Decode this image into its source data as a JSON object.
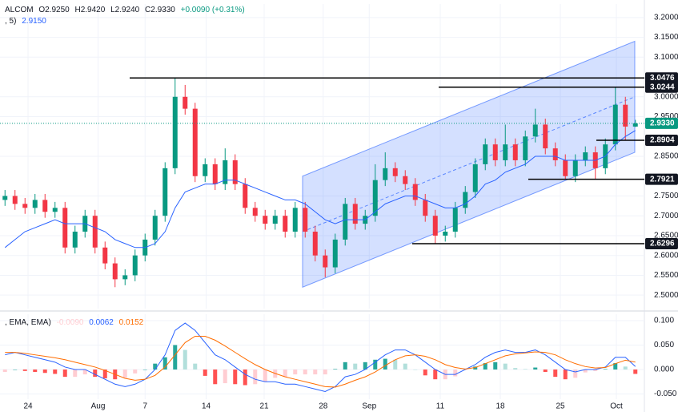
{
  "chart_data": [
    {
      "type": "candlestick",
      "symbol": "ALCOM",
      "ohlc_labels": [
        "O2.9250",
        "H2.9420",
        "L2.9240",
        "C2.9330"
      ],
      "change": "+0.0090 (+0.31%)",
      "ema_label": ", 5)",
      "ema_value": "2.9150",
      "up_color": "#089981",
      "down_color": "#f23645",
      "open": [
        2.74,
        2.75,
        2.73,
        2.72,
        2.74,
        2.71,
        2.72,
        2.62,
        2.66,
        2.7,
        2.62,
        2.58,
        2.54,
        2.55,
        2.6,
        2.64,
        2.7,
        2.82,
        3.0,
        2.97,
        2.8,
        2.83,
        2.78,
        2.84,
        2.78,
        2.72,
        2.7,
        2.68,
        2.7,
        2.66,
        2.72,
        2.66,
        2.6,
        2.57,
        2.64,
        2.73,
        2.68,
        2.7,
        2.79,
        2.82,
        2.8,
        2.78,
        2.74,
        2.7,
        2.65,
        2.66,
        2.72,
        2.76,
        2.83,
        2.88,
        2.84,
        2.88,
        2.84,
        2.9,
        2.93,
        2.87,
        2.84,
        2.8,
        2.84,
        2.86,
        2.82,
        2.88,
        2.98,
        2.925
      ],
      "high": [
        2.765,
        2.765,
        2.745,
        2.755,
        2.755,
        2.735,
        2.735,
        2.675,
        2.715,
        2.715,
        2.635,
        2.595,
        2.565,
        2.615,
        2.655,
        2.715,
        2.835,
        3.0476,
        3.03,
        2.985,
        2.845,
        2.845,
        2.87,
        2.855,
        2.795,
        2.735,
        2.715,
        2.715,
        2.715,
        2.735,
        2.735,
        2.675,
        2.615,
        2.655,
        2.745,
        2.745,
        2.715,
        2.83,
        2.86,
        2.835,
        2.815,
        2.795,
        2.755,
        2.715,
        2.675,
        2.735,
        2.775,
        2.845,
        2.895,
        2.895,
        2.93,
        2.895,
        2.915,
        2.97,
        2.945,
        2.885,
        2.855,
        2.855,
        2.875,
        2.875,
        2.895,
        3.0244,
        3.0,
        2.942
      ],
      "low": [
        2.725,
        2.715,
        2.705,
        2.705,
        2.695,
        2.695,
        2.605,
        2.605,
        2.645,
        2.605,
        2.565,
        2.52,
        2.525,
        2.535,
        2.585,
        2.625,
        2.685,
        2.805,
        2.955,
        2.785,
        2.785,
        2.765,
        2.765,
        2.765,
        2.705,
        2.685,
        2.665,
        2.665,
        2.645,
        2.645,
        2.645,
        2.585,
        2.545,
        2.555,
        2.625,
        2.665,
        2.665,
        2.685,
        2.775,
        2.785,
        2.765,
        2.725,
        2.685,
        2.6296,
        2.635,
        2.645,
        2.705,
        2.745,
        2.815,
        2.825,
        2.825,
        2.825,
        2.825,
        2.885,
        2.855,
        2.825,
        2.7921,
        2.785,
        2.825,
        2.7921,
        2.805,
        2.865,
        2.8904,
        2.924
      ],
      "close": [
        2.75,
        2.73,
        2.72,
        2.74,
        2.71,
        2.72,
        2.62,
        2.66,
        2.7,
        2.62,
        2.58,
        2.54,
        2.55,
        2.6,
        2.64,
        2.7,
        2.82,
        3.0,
        2.97,
        2.8,
        2.83,
        2.78,
        2.84,
        2.78,
        2.72,
        2.7,
        2.68,
        2.7,
        2.66,
        2.72,
        2.66,
        2.6,
        2.57,
        2.64,
        2.73,
        2.68,
        2.7,
        2.79,
        2.82,
        2.8,
        2.78,
        2.74,
        2.7,
        2.65,
        2.66,
        2.72,
        2.76,
        2.83,
        2.88,
        2.84,
        2.88,
        2.84,
        2.9,
        2.93,
        2.87,
        2.84,
        2.8,
        2.84,
        2.86,
        2.82,
        2.88,
        2.98,
        2.925,
        2.933
      ],
      "ema": {
        "color": "#2962ff",
        "values": [
          2.62,
          2.64,
          2.66,
          2.67,
          2.68,
          2.69,
          2.68,
          2.68,
          2.68,
          2.67,
          2.66,
          2.64,
          2.63,
          2.62,
          2.62,
          2.63,
          2.66,
          2.72,
          2.76,
          2.77,
          2.78,
          2.78,
          2.79,
          2.79,
          2.78,
          2.77,
          2.76,
          2.75,
          2.74,
          2.74,
          2.73,
          2.71,
          2.69,
          2.68,
          2.69,
          2.69,
          2.69,
          2.71,
          2.73,
          2.74,
          2.75,
          2.75,
          2.74,
          2.73,
          2.72,
          2.72,
          2.73,
          2.75,
          2.78,
          2.79,
          2.81,
          2.82,
          2.83,
          2.85,
          2.85,
          2.85,
          2.84,
          2.84,
          2.84,
          2.84,
          2.85,
          2.88,
          2.9,
          2.915
        ]
      },
      "channel": {
        "color": "#2962ff",
        "x": [
          30.24,
          63.44
        ],
        "upper": [
          2.8,
          3.14
        ],
        "lower": [
          2.52,
          2.86
        ]
      },
      "levels": [
        {
          "value": 3.0476,
          "start": 12.96
        },
        {
          "value": 3.0244,
          "start": 43.84
        },
        {
          "value": 2.8904,
          "start": 59.6
        },
        {
          "value": 2.7921,
          "start": 52.8
        },
        {
          "value": 2.6296,
          "start": 41.2
        }
      ],
      "last_price": {
        "value": 2.933,
        "label": "2.9330"
      },
      "xlim": [
        0,
        64.4
      ],
      "ylim": [
        2.466,
        3.234
      ],
      "yticks": [
        {
          "value": 2.5,
          "label": "2.5000"
        },
        {
          "value": 2.55,
          "label": "2.5500"
        },
        {
          "value": 2.6,
          "label": "2.6000"
        },
        {
          "value": 2.65,
          "label": "2.6500"
        },
        {
          "value": 2.7,
          "label": "2.7000"
        },
        {
          "value": 2.75,
          "label": "2.7500"
        },
        {
          "value": 2.85,
          "label": "2.8500"
        },
        {
          "value": 2.95,
          "label": "2.9500"
        },
        {
          "value": 3.0,
          "label": "3.0000"
        },
        {
          "value": 3.1,
          "label": "3.1000"
        },
        {
          "value": 3.15,
          "label": "3.1500"
        },
        {
          "value": 3.2,
          "label": "3.2000"
        }
      ],
      "grid": true
    },
    {
      "type": "macd",
      "label": ", EMA, EMA)",
      "value_labels": [
        "-0.0090",
        "0.0062",
        "0.0152"
      ],
      "series": [
        {
          "color": "#2962ff",
          "values": [
            0.03,
            0.035,
            0.03,
            0.025,
            0.02,
            0.015,
            0.005,
            0.0,
            0.0,
            -0.01,
            -0.02,
            -0.03,
            -0.035,
            -0.03,
            -0.02,
            0.0,
            0.03,
            0.08,
            0.095,
            0.08,
            0.055,
            0.03,
            0.02,
            0.005,
            -0.01,
            -0.02,
            -0.025,
            -0.025,
            -0.03,
            -0.03,
            -0.035,
            -0.04,
            -0.045,
            -0.035,
            -0.015,
            -0.01,
            0.0,
            0.015,
            0.03,
            0.04,
            0.04,
            0.03,
            0.015,
            0.0,
            -0.01,
            -0.01,
            0.0,
            0.01,
            0.025,
            0.035,
            0.04,
            0.035,
            0.035,
            0.04,
            0.03,
            0.015,
            0.0,
            -0.005,
            0.0,
            0.0,
            0.005,
            0.025,
            0.025,
            0.0062
          ]
        },
        {
          "color": "#ff6d00",
          "values": [
            0.035,
            0.035,
            0.033,
            0.03,
            0.027,
            0.024,
            0.02,
            0.015,
            0.01,
            0.005,
            -0.002,
            -0.01,
            -0.018,
            -0.022,
            -0.02,
            -0.012,
            0.005,
            0.03,
            0.055,
            0.068,
            0.068,
            0.06,
            0.048,
            0.035,
            0.022,
            0.01,
            0.0,
            -0.008,
            -0.015,
            -0.02,
            -0.025,
            -0.03,
            -0.035,
            -0.036,
            -0.03,
            -0.022,
            -0.015,
            -0.005,
            0.008,
            0.02,
            0.028,
            0.03,
            0.027,
            0.02,
            0.01,
            0.004,
            0.001,
            0.004,
            0.012,
            0.02,
            0.028,
            0.032,
            0.034,
            0.036,
            0.035,
            0.03,
            0.02,
            0.012,
            0.006,
            0.003,
            0.004,
            0.012,
            0.019,
            0.0152
          ]
        }
      ],
      "histogram": {
        "colors": [
          "#26a69a",
          "#b2dfdb",
          "#ffcdd2",
          "#ff5252"
        ],
        "values": [
          -0.005,
          0,
          -0.003,
          -0.005,
          -0.007,
          -0.009,
          -0.015,
          -0.015,
          -0.01,
          -0.015,
          -0.018,
          -0.02,
          -0.017,
          -0.008,
          0,
          0.012,
          0.025,
          0.05,
          0.04,
          0.012,
          -0.013,
          -0.03,
          -0.028,
          -0.03,
          -0.032,
          -0.03,
          -0.025,
          -0.017,
          -0.015,
          -0.01,
          -0.01,
          -0.01,
          -0.01,
          0.001,
          0.015,
          0.012,
          0.015,
          0.02,
          0.022,
          0.02,
          0.012,
          0,
          -0.012,
          -0.02,
          -0.02,
          -0.014,
          -0.001,
          0.006,
          0.013,
          0.015,
          0.012,
          0.003,
          0.001,
          0.004,
          -0.005,
          -0.015,
          -0.02,
          -0.017,
          -0.006,
          -0.003,
          0.001,
          0.013,
          0.006,
          -0.009
        ]
      },
      "xlim": [
        0,
        64.4
      ],
      "ylim": [
        -0.0607,
        0.1131
      ],
      "yticks": [
        {
          "value": 0.1,
          "label": "0.100"
        },
        {
          "value": 0.05,
          "label": "0.050"
        },
        {
          "value": 0,
          "label": "0.000"
        },
        {
          "value": -0.05,
          "label": "-0.050"
        }
      ],
      "xticks": [
        {
          "value": 2.8,
          "label": "24"
        },
        {
          "value": 9.8,
          "label": "Aug"
        },
        {
          "value": 14.5,
          "label": "7"
        },
        {
          "value": 20.6,
          "label": "14"
        },
        {
          "value": 26.4,
          "label": "21"
        },
        {
          "value": 32.3,
          "label": "28"
        },
        {
          "value": 36.9,
          "label": "Sep"
        },
        {
          "value": 44,
          "label": "11"
        },
        {
          "value": 50,
          "label": "18"
        },
        {
          "value": 56,
          "label": "25"
        },
        {
          "value": 61.6,
          "label": "Oct"
        }
      ],
      "grid": true
    }
  ]
}
